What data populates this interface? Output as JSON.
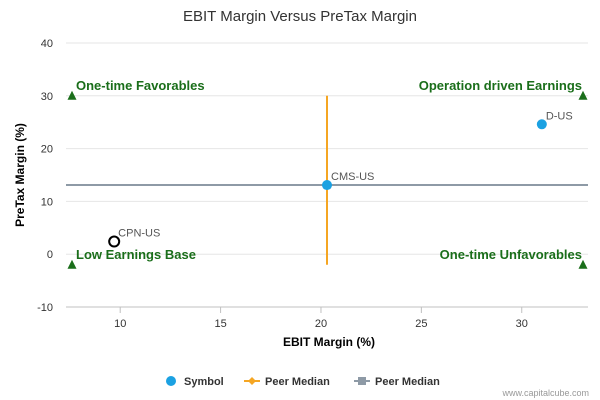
{
  "chart_data": {
    "type": "scatter",
    "title": "EBIT Margin Versus PreTax Margin",
    "xlabel": "EBIT Margin (%)",
    "ylabel": "PreTax Margin (%)",
    "xlim": [
      7.3,
      33.3
    ],
    "ylim": [
      -10,
      40
    ],
    "x_ticks": [
      10,
      15,
      20,
      25,
      30
    ],
    "y_ticks": [
      -10,
      0,
      10,
      20,
      30,
      40
    ],
    "grid": "horizontal",
    "points": [
      {
        "label": "D-US",
        "x": 31.0,
        "y": 24.6,
        "style": "filled",
        "color": "#1ba1e2"
      },
      {
        "label": "CMS-US",
        "x": 20.3,
        "y": 13.1,
        "style": "filled",
        "color": "#1ba1e2"
      },
      {
        "label": "CPN-US",
        "x": 9.7,
        "y": 2.4,
        "style": "hollow",
        "color": "#000000"
      }
    ],
    "peer_median_vertical": {
      "x": 20.3,
      "y_range": [
        -2,
        30
      ],
      "color": "#f5a623"
    },
    "peer_median_horizontal": {
      "y": 13.1,
      "color": "#8e9aa6"
    },
    "quadrants": [
      {
        "label": "One-time Favorables",
        "corner": "top-left"
      },
      {
        "label": "Operation driven Earnings",
        "corner": "top-right"
      },
      {
        "label": "Low Earnings Base",
        "corner": "bottom-left"
      },
      {
        "label": "One-time Unfavorables",
        "corner": "bottom-right"
      }
    ],
    "quadrant_marker_color": "#1a6e1a",
    "legend": {
      "placement": "bottom",
      "items": [
        {
          "label": "Symbol",
          "marker": "circle",
          "color": "#1ba1e2"
        },
        {
          "label": "Peer Median",
          "marker": "diamond-line",
          "color": "#f5a623"
        },
        {
          "label": "Peer Median",
          "marker": "square-line",
          "color": "#8e9aa6"
        }
      ]
    }
  },
  "credit": "www.capitalcube.com"
}
